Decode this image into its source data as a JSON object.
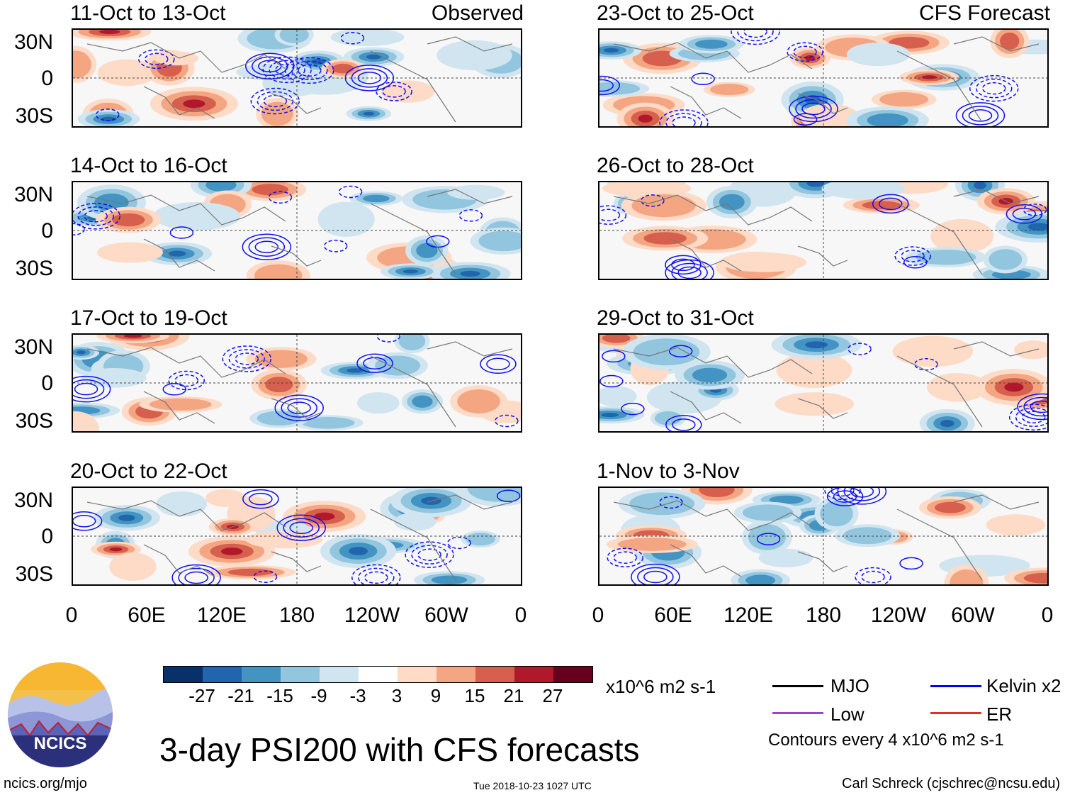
{
  "main_title": "3-day PSI200 with CFS forecasts",
  "panels_left": [
    {
      "title": "11-Oct to 13-Oct",
      "label": "Observed"
    },
    {
      "title": "14-Oct to 16-Oct",
      "label": ""
    },
    {
      "title": "17-Oct to 19-Oct",
      "label": ""
    },
    {
      "title": "20-Oct to 22-Oct",
      "label": ""
    }
  ],
  "panels_right": [
    {
      "title": "23-Oct to 25-Oct",
      "label": "CFS Forecast"
    },
    {
      "title": "26-Oct to 28-Oct",
      "label": ""
    },
    {
      "title": "29-Oct to 31-Oct",
      "label": ""
    },
    {
      "title": "1-Nov to 3-Nov",
      "label": ""
    }
  ],
  "lat_labels": [
    "30N",
    "0",
    "30S"
  ],
  "lon_labels": [
    "0",
    "60E",
    "120E",
    "180",
    "120W",
    "60W",
    "0"
  ],
  "colorbar": {
    "colors": [
      "#08306b",
      "#2166ac",
      "#4393c3",
      "#92c5de",
      "#d1e5f0",
      "#ffffff",
      "#fddbc7",
      "#f4a582",
      "#d6604d",
      "#b2182b",
      "#67001f"
    ],
    "ticks": [
      "-27",
      "-21",
      "-15",
      "-9",
      "-3",
      "3",
      "9",
      "15",
      "21",
      "27"
    ],
    "units": "x10^6 m2 s-1"
  },
  "legend": {
    "mjo": {
      "label": "MJO",
      "color": "#000000"
    },
    "kelvin": {
      "label": "Kelvin x2",
      "color": "#0000ff"
    },
    "low": {
      "label": "Low",
      "color": "#a040d0"
    },
    "er": {
      "label": "ER",
      "color": "#e03020"
    },
    "note": "Contours every 4 x10^6 m2 s-1"
  },
  "logo_text": "NCICS",
  "footer": {
    "left": "ncics.org/mjo",
    "center": "Tue 2018-10-23 1027 UTC",
    "right": "Carl Schreck (cjschrec@ncsu.edu)"
  }
}
